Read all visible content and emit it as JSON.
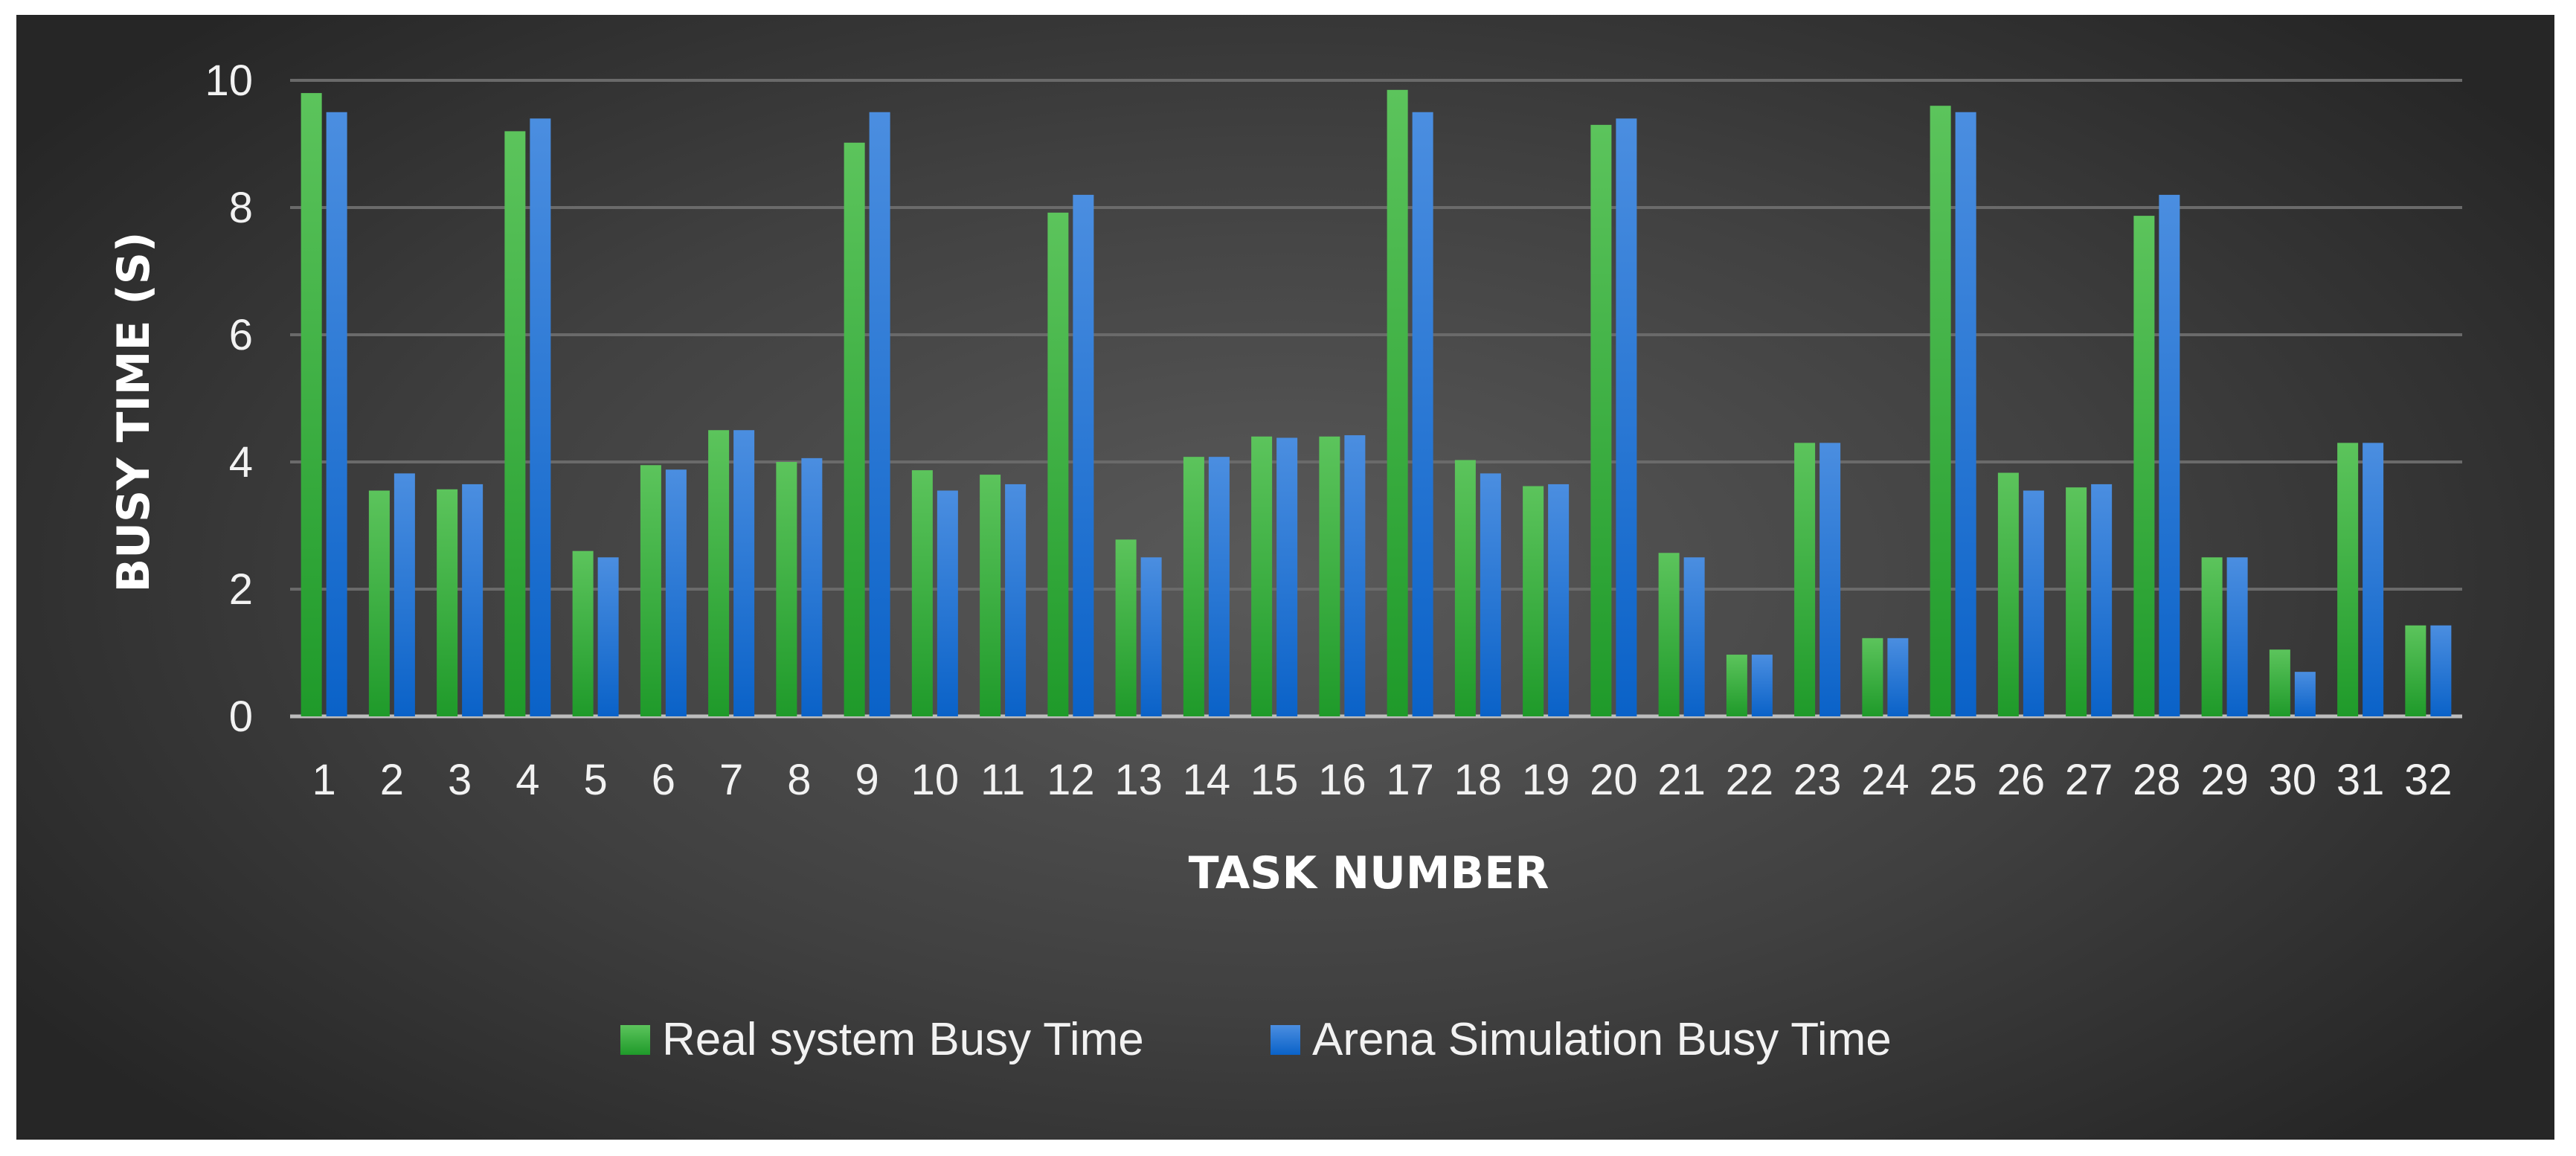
{
  "chart_data": {
    "type": "bar",
    "title": "",
    "xlabel": "TASK NUMBER",
    "ylabel": "BUSY  TIME (S)",
    "ylim": [
      0,
      10
    ],
    "yticks": [
      0,
      2,
      4,
      6,
      8,
      10
    ],
    "grid": true,
    "legend_position": "bottom",
    "categories": [
      "1",
      "2",
      "3",
      "4",
      "5",
      "6",
      "7",
      "8",
      "9",
      "10",
      "11",
      "12",
      "13",
      "14",
      "15",
      "16",
      "17",
      "18",
      "19",
      "20",
      "21",
      "22",
      "23",
      "24",
      "25",
      "26",
      "27",
      "28",
      "29",
      "30",
      "31",
      "32"
    ],
    "series": [
      {
        "name": "Real system Busy Time",
        "color": "#3fae3f",
        "values": [
          9.8,
          3.55,
          3.57,
          9.2,
          2.6,
          3.95,
          4.5,
          4.0,
          9.02,
          3.87,
          3.8,
          7.92,
          2.78,
          4.08,
          4.4,
          4.4,
          9.85,
          4.03,
          3.62,
          9.3,
          2.57,
          0.97,
          4.3,
          1.23,
          9.6,
          3.83,
          3.6,
          7.87,
          2.5,
          1.05,
          4.3,
          1.43
        ]
      },
      {
        "name": "Arena Simulation Busy Time",
        "color": "#3377d1",
        "values": [
          9.5,
          3.82,
          3.65,
          9.4,
          2.5,
          3.88,
          4.5,
          4.06,
          9.5,
          3.55,
          3.65,
          8.2,
          2.5,
          4.08,
          4.38,
          4.42,
          9.5,
          3.82,
          3.65,
          9.4,
          2.5,
          0.97,
          4.3,
          1.23,
          9.5,
          3.55,
          3.65,
          8.2,
          2.5,
          0.7,
          4.3,
          1.43
        ]
      }
    ]
  }
}
